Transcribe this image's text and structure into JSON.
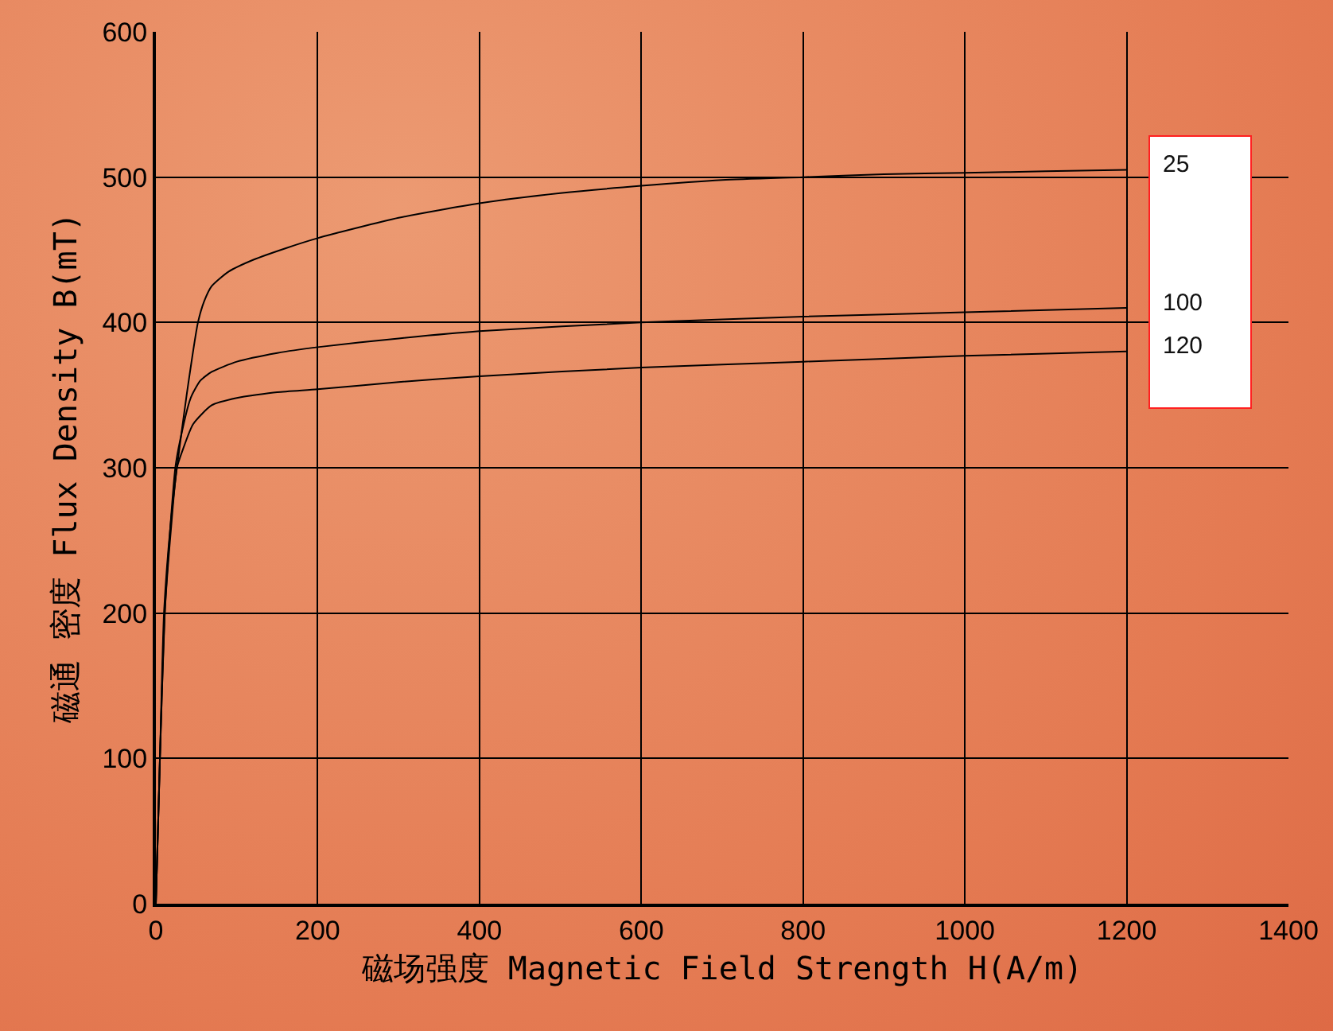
{
  "chart_data": {
    "type": "line",
    "xlabel": "磁场强度 Magnetic Field Strength H(A/m)",
    "ylabel": "磁通 密度 Flux Density B(mT)",
    "xlim": [
      0,
      1400
    ],
    "ylim": [
      0,
      600
    ],
    "xticks": [
      0,
      200,
      400,
      600,
      800,
      1000,
      1200,
      1400
    ],
    "yticks": [
      0,
      100,
      200,
      300,
      400,
      500,
      600
    ],
    "grid": true,
    "legend": false,
    "marker": "none",
    "line_style": "solid",
    "series": [
      {
        "name": "25",
        "color": "#000000",
        "x": [
          0,
          5,
          10,
          18,
          26,
          38,
          52,
          60,
          69,
          90,
          120,
          160,
          200,
          300,
          400,
          500,
          600,
          700,
          800,
          900,
          1000,
          1100,
          1200
        ],
        "values": [
          0,
          100,
          200,
          260,
          300,
          350,
          400,
          415,
          425,
          435,
          443,
          451,
          458,
          472,
          482,
          489,
          494,
          498,
          500,
          502,
          503,
          504,
          505
        ]
      },
      {
        "name": "100",
        "color": "#000000",
        "x": [
          0,
          5,
          11,
          18,
          24,
          30,
          43,
          55,
          69,
          100,
          150,
          200,
          300,
          400,
          600,
          800,
          1000,
          1200
        ],
        "values": [
          0,
          100,
          200,
          260,
          300,
          319,
          348,
          360,
          366,
          373,
          379,
          383,
          389,
          394,
          400,
          404,
          407,
          410
        ]
      },
      {
        "name": "120",
        "color": "#000000",
        "x": [
          0,
          5,
          11,
          19,
          26,
          33,
          46,
          69,
          100,
          150,
          200,
          300,
          400,
          600,
          800,
          1000,
          1200
        ],
        "values": [
          0,
          100,
          200,
          260,
          300,
          312,
          330,
          343,
          348,
          352,
          354,
          359,
          363,
          369,
          373,
          377,
          380
        ]
      }
    ]
  }
}
